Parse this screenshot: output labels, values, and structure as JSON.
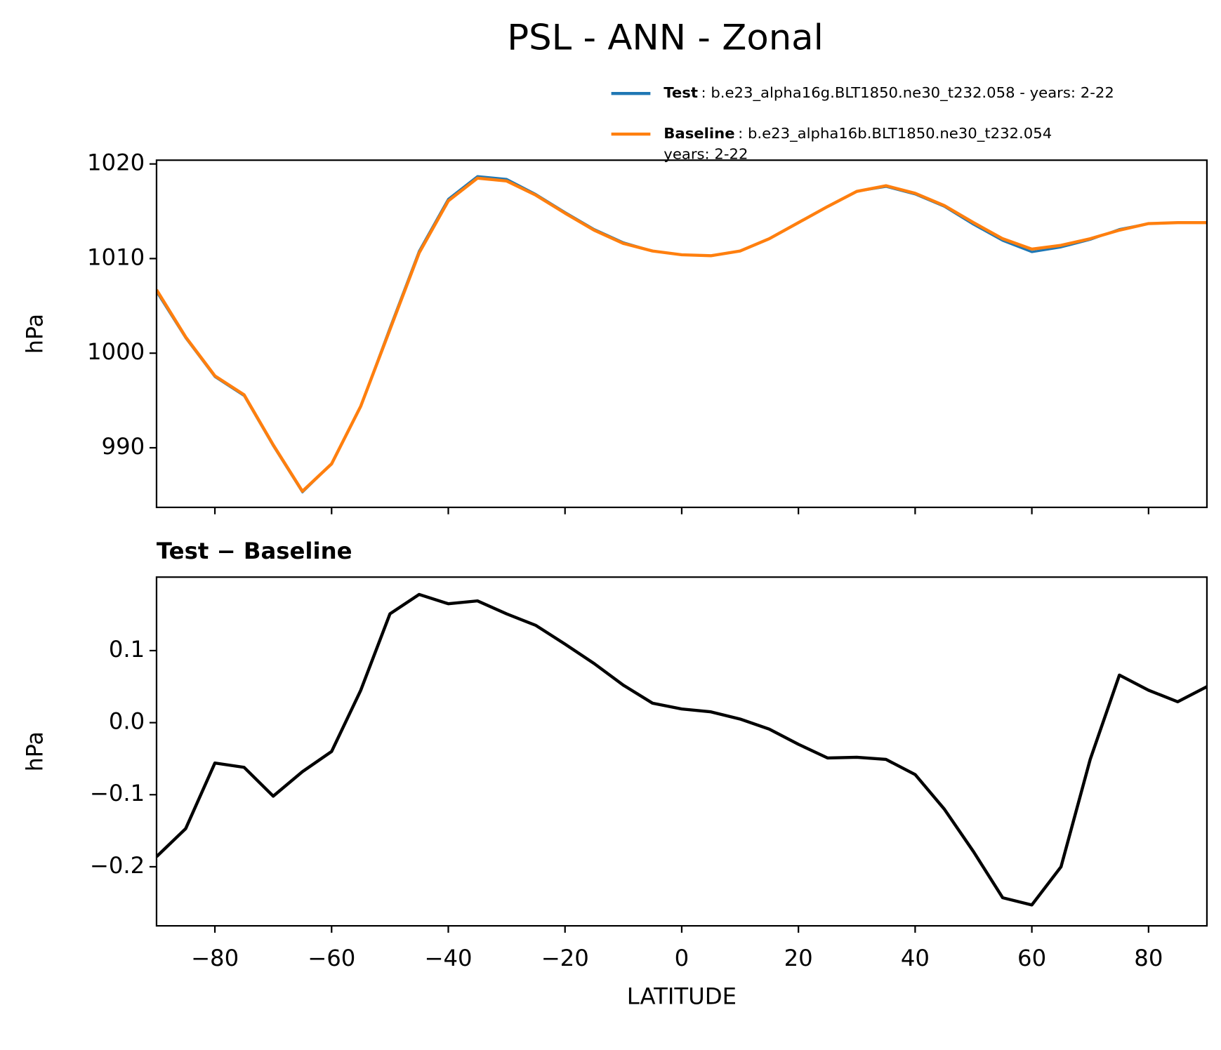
{
  "title": "PSL - ANN - Zonal",
  "chart_data": [
    {
      "type": "line",
      "ylabel": "hPa",
      "show_xtick_labels": false,
      "x": [
        -90,
        -85,
        -80,
        -75,
        -70,
        -65,
        -60,
        -55,
        -50,
        -45,
        -40,
        -35,
        -30,
        -25,
        -20,
        -15,
        -10,
        -5,
        0,
        5,
        10,
        15,
        20,
        25,
        30,
        35,
        40,
        45,
        50,
        55,
        60,
        65,
        70,
        75,
        80,
        85,
        90
      ],
      "series": [
        {
          "name": "Test",
          "description": [
            ": b.e23_alpha16g.BLT1850.ne30_t232.058 - years: 2-22"
          ],
          "color": "#1f77b4",
          "values": [
            1006.5,
            1001.6,
            997.5,
            995.5,
            990.2,
            985.3,
            988.3,
            994.4,
            1002.7,
            1010.8,
            1016.3,
            1018.7,
            1018.4,
            1016.8,
            1014.9,
            1013.1,
            1011.7,
            1010.8,
            1010.4,
            1010.3,
            1010.8,
            1012.1,
            1013.8,
            1015.5,
            1017.1,
            1017.6,
            1016.8,
            1015.5,
            1013.6,
            1011.9,
            1010.7,
            1011.2,
            1012.0,
            1013.1,
            1013.7,
            1013.8,
            1013.8
          ]
        },
        {
          "name": "Baseline",
          "description": [
            ": b.e23_alpha16b.BLT1850.ne30_t232.054",
            "years: 2-22"
          ],
          "color": "#ff7f0e",
          "values": [
            1006.7,
            1001.7,
            997.6,
            995.6,
            990.3,
            985.4,
            988.3,
            994.4,
            1002.5,
            1010.6,
            1016.1,
            1018.5,
            1018.2,
            1016.7,
            1014.8,
            1013.0,
            1011.6,
            1010.8,
            1010.4,
            1010.3,
            1010.8,
            1012.1,
            1013.8,
            1015.5,
            1017.1,
            1017.7,
            1016.9,
            1015.6,
            1013.8,
            1012.1,
            1011.0,
            1011.4,
            1012.1,
            1013.0,
            1013.7,
            1013.8,
            1013.8
          ]
        }
      ],
      "xlim": [
        -90,
        90
      ],
      "xticks": [
        -80,
        -60,
        -40,
        -20,
        0,
        20,
        40,
        60,
        80
      ],
      "ylim": [
        983.7,
        1020.4
      ],
      "yticks": [
        990,
        1000,
        1010,
        1020
      ]
    },
    {
      "type": "line",
      "title": "Test − Baseline",
      "ylabel": "hPa",
      "xlabel": "LATITUDE",
      "x": [
        -90,
        -85,
        -80,
        -75,
        -70,
        -65,
        -60,
        -55,
        -50,
        -45,
        -40,
        -35,
        -30,
        -25,
        -20,
        -15,
        -10,
        -5,
        0,
        5,
        10,
        15,
        20,
        25,
        30,
        35,
        40,
        45,
        50,
        55,
        60,
        65,
        70,
        75,
        80,
        85,
        90
      ],
      "series": [
        {
          "name": "Test − Baseline",
          "color": "#000000",
          "values": [
            -0.186,
            -0.147,
            -0.056,
            -0.062,
            -0.102,
            -0.068,
            -0.04,
            0.045,
            0.151,
            0.178,
            0.165,
            0.169,
            0.151,
            0.135,
            0.109,
            0.082,
            0.052,
            0.027,
            0.019,
            0.015,
            0.005,
            -0.009,
            -0.03,
            -0.049,
            -0.048,
            -0.051,
            -0.072,
            -0.12,
            -0.179,
            -0.243,
            -0.253,
            -0.2,
            -0.051,
            0.066,
            0.045,
            0.029,
            0.05
          ]
        }
      ],
      "xlim": [
        -90,
        90
      ],
      "xticks": [
        {
          "value": -80,
          "label": "−80"
        },
        {
          "value": -60,
          "label": "−60"
        },
        {
          "value": -40,
          "label": "−40"
        },
        {
          "value": -20,
          "label": "−20"
        },
        0,
        20,
        40,
        60,
        80
      ],
      "ylim": [
        -0.282,
        0.202
      ],
      "yticks": [
        {
          "value": -0.2,
          "label": "−0.2"
        },
        {
          "value": -0.1,
          "label": "−0.1"
        },
        {
          "value": 0,
          "label": "0.0"
        },
        0.1
      ]
    }
  ]
}
